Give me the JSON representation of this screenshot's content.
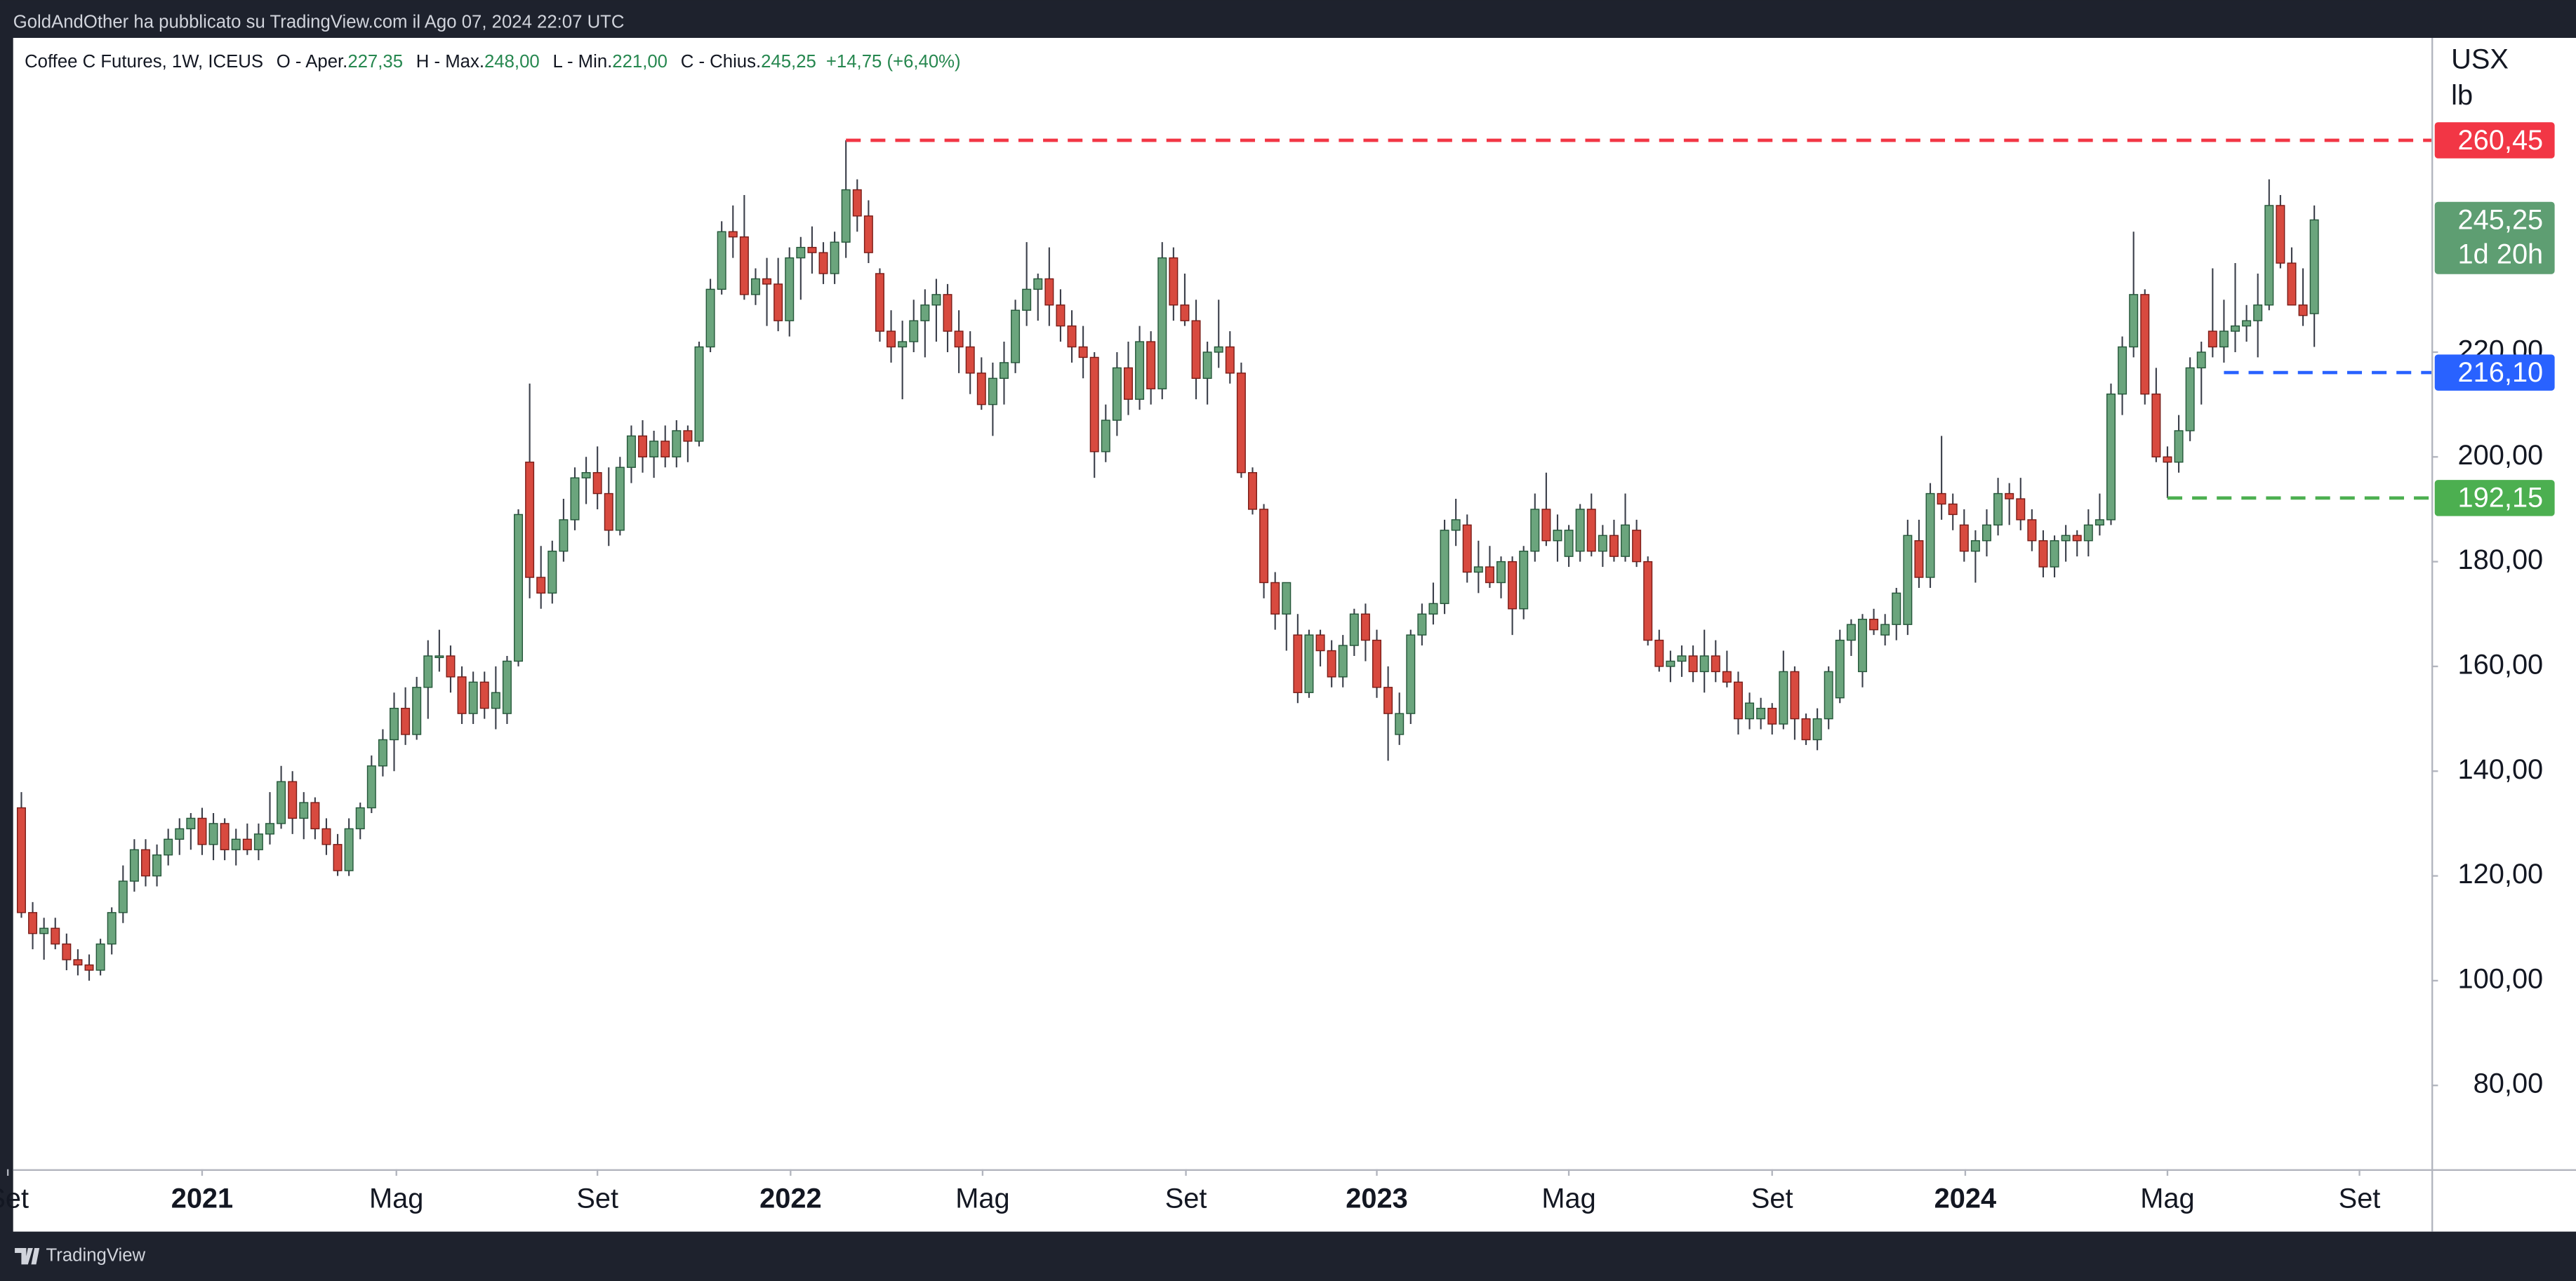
{
  "header": "GoldAndOther ha pubblicato su TradingView.com il Ago 07, 2024 22:07 UTC",
  "footer": "TradingView",
  "chart_data": {
    "type": "candlestick",
    "legend": {
      "symbol": "Coffee C Futures, 1W, ICEUS",
      "fields": [
        {
          "label": "O - Aper.",
          "value": "227,35"
        },
        {
          "label": "H - Max.",
          "value": "248,00"
        },
        {
          "label": "L - Min.",
          "value": "221,00"
        },
        {
          "label": "C - Chius.",
          "value": "245,25"
        }
      ],
      "change": "+14,75 (+6,40%)"
    },
    "units": [
      "USX",
      "lb"
    ],
    "up_color": "#6ba57d",
    "down_color": "#d84a3f",
    "ylim": [
      64,
      280
    ],
    "yticks": [
      {
        "value": 80,
        "label": "80,00"
      },
      {
        "value": 100,
        "label": "100,00"
      },
      {
        "value": 120,
        "label": "120,00"
      },
      {
        "value": 140,
        "label": "140,00"
      },
      {
        "value": 160,
        "label": "160,00"
      },
      {
        "value": 180,
        "label": "180,00"
      },
      {
        "value": 200,
        "label": "200,00"
      },
      {
        "value": 220,
        "label": "220,00"
      }
    ],
    "xlim": [
      -0.73,
      213.37
    ],
    "xticks": [
      {
        "value": -1.2,
        "label": "Set"
      },
      {
        "value": 16,
        "label": "2021"
      },
      {
        "value": 33.2,
        "label": "Mag"
      },
      {
        "value": 51,
        "label": "Set"
      },
      {
        "value": 68.1,
        "label": "2022"
      },
      {
        "value": 85.1,
        "label": "Mag"
      },
      {
        "value": 103.1,
        "label": "Set"
      },
      {
        "value": 120,
        "label": "2023"
      },
      {
        "value": 137,
        "label": "Mag"
      },
      {
        "value": 155,
        "label": "Set"
      },
      {
        "value": 172.1,
        "label": "2024"
      },
      {
        "value": 190,
        "label": "Mag"
      },
      {
        "value": 207,
        "label": "Set"
      }
    ],
    "grid": false,
    "levels": [
      {
        "value": 260.45,
        "label": "260,45",
        "color": "#f23645",
        "from": 73
      },
      {
        "value": 216.1,
        "label": "216,10",
        "color": "#2962ff",
        "from": 195
      },
      {
        "value": 192.15,
        "label": "192,15",
        "color": "#4caf50",
        "from": 190
      }
    ],
    "last_price": {
      "value": 245.25,
      "label": "245,25",
      "countdown": "1d 20h",
      "color": "#5e9e72"
    },
    "ohlc": [
      [
        133,
        136,
        112,
        113
      ],
      [
        113,
        115,
        106,
        109
      ],
      [
        109,
        112,
        104,
        110
      ],
      [
        110,
        112,
        106,
        107
      ],
      [
        107,
        109,
        102,
        104
      ],
      [
        104,
        106,
        101,
        103
      ],
      [
        103,
        105,
        100,
        102
      ],
      [
        102,
        108,
        101,
        107
      ],
      [
        107,
        114,
        105,
        113
      ],
      [
        113,
        122,
        111,
        119
      ],
      [
        119,
        127,
        117,
        125
      ],
      [
        125,
        127,
        118,
        120
      ],
      [
        120,
        126,
        118,
        124
      ],
      [
        124,
        129,
        122,
        127
      ],
      [
        127,
        131,
        124,
        129
      ],
      [
        129,
        132,
        125,
        131
      ],
      [
        131,
        133,
        124,
        126
      ],
      [
        126,
        132,
        123,
        130
      ],
      [
        130,
        131,
        123,
        125
      ],
      [
        125,
        129,
        122,
        127
      ],
      [
        127,
        130,
        124,
        125
      ],
      [
        125,
        130,
        123,
        128
      ],
      [
        128,
        136,
        126,
        130
      ],
      [
        130,
        141,
        129,
        138
      ],
      [
        138,
        140,
        128,
        131
      ],
      [
        131,
        136,
        127,
        134
      ],
      [
        134,
        135,
        127,
        129
      ],
      [
        129,
        131,
        124,
        126
      ],
      [
        126,
        128,
        120,
        121
      ],
      [
        121,
        131,
        120,
        129
      ],
      [
        129,
        134,
        127,
        133
      ],
      [
        133,
        143,
        132,
        141
      ],
      [
        141,
        148,
        139,
        146
      ],
      [
        146,
        155,
        140,
        152
      ],
      [
        152,
        156,
        145,
        147
      ],
      [
        147,
        158,
        146,
        156
      ],
      [
        156,
        165,
        150,
        162
      ],
      [
        162,
        167,
        159,
        162
      ],
      [
        162,
        164,
        155,
        158
      ],
      [
        158,
        160,
        149,
        151
      ],
      [
        151,
        159,
        149,
        157
      ],
      [
        157,
        159,
        150,
        152
      ],
      [
        152,
        160,
        148,
        155
      ],
      [
        151,
        162,
        149,
        161
      ],
      [
        161,
        190,
        160,
        189
      ],
      [
        199,
        214,
        173,
        177
      ],
      [
        177,
        183,
        171,
        174
      ],
      [
        174,
        184,
        172,
        182
      ],
      [
        182,
        192,
        180,
        188
      ],
      [
        188,
        198,
        186,
        196
      ],
      [
        196,
        200,
        191,
        197
      ],
      [
        197,
        202,
        190,
        193
      ],
      [
        193,
        198,
        183,
        186
      ],
      [
        186,
        200,
        185,
        198
      ],
      [
        198,
        206,
        195,
        204
      ],
      [
        204,
        207,
        197,
        200
      ],
      [
        200,
        205,
        196,
        203
      ],
      [
        203,
        206,
        198,
        200
      ],
      [
        200,
        207,
        198,
        205
      ],
      [
        205,
        206,
        199,
        203
      ],
      [
        203,
        222,
        202,
        221
      ],
      [
        221,
        234,
        220,
        232
      ],
      [
        232,
        245,
        231,
        243
      ],
      [
        243,
        248,
        238,
        242
      ],
      [
        242,
        250,
        230,
        231
      ],
      [
        231,
        236,
        229,
        234
      ],
      [
        234,
        238,
        225,
        233
      ],
      [
        233,
        238,
        224,
        226
      ],
      [
        226,
        240,
        223,
        238
      ],
      [
        238,
        242,
        230,
        240
      ],
      [
        240,
        244,
        235,
        239
      ],
      [
        239,
        241,
        233,
        235
      ],
      [
        235,
        243,
        233,
        241
      ],
      [
        241,
        260.45,
        238,
        251
      ],
      [
        251,
        253,
        243,
        246
      ],
      [
        246,
        249,
        237,
        239
      ],
      [
        235,
        236,
        222,
        224
      ],
      [
        224,
        228,
        218,
        221
      ],
      [
        221,
        226,
        211,
        222
      ],
      [
        222,
        230,
        220,
        226
      ],
      [
        226,
        232,
        219,
        229
      ],
      [
        229,
        234,
        222,
        231
      ],
      [
        231,
        233,
        220,
        224
      ],
      [
        224,
        228,
        216,
        221
      ],
      [
        221,
        224,
        212,
        216
      ],
      [
        216,
        219,
        209,
        210
      ],
      [
        210,
        218,
        204,
        215
      ],
      [
        215,
        222,
        210,
        218
      ],
      [
        218,
        230,
        216,
        228
      ],
      [
        228,
        241,
        225,
        232
      ],
      [
        232,
        235,
        226,
        234
      ],
      [
        234,
        240,
        225,
        229
      ],
      [
        229,
        232,
        222,
        225
      ],
      [
        225,
        228,
        218,
        221
      ],
      [
        221,
        225,
        215,
        219
      ],
      [
        219,
        220,
        196,
        201
      ],
      [
        201,
        210,
        199,
        207
      ],
      [
        207,
        220,
        204,
        217
      ],
      [
        217,
        222,
        208,
        211
      ],
      [
        211,
        225,
        209,
        222
      ],
      [
        222,
        224,
        210,
        213
      ],
      [
        213,
        241,
        211,
        238
      ],
      [
        238,
        240,
        226,
        229
      ],
      [
        229,
        235,
        225,
        226
      ],
      [
        226,
        230,
        211,
        215
      ],
      [
        215,
        222,
        210,
        220
      ],
      [
        220,
        230,
        217,
        221
      ],
      [
        221,
        224,
        214,
        216
      ],
      [
        216,
        218,
        196,
        197
      ],
      [
        197,
        198,
        189,
        190
      ],
      [
        190,
        191,
        173,
        176
      ],
      [
        176,
        178,
        167,
        170
      ],
      [
        170,
        176,
        163,
        176
      ],
      [
        166,
        170,
        153,
        155
      ],
      [
        155,
        167,
        154,
        166
      ],
      [
        166,
        167,
        160,
        163
      ],
      [
        163,
        165,
        156,
        158
      ],
      [
        158,
        166,
        156,
        164
      ],
      [
        164,
        171,
        162,
        170
      ],
      [
        170,
        172,
        161,
        165
      ],
      [
        165,
        167,
        154,
        156
      ],
      [
        156,
        160,
        142,
        151
      ],
      [
        147,
        155,
        145,
        151
      ],
      [
        151,
        167,
        149,
        166
      ],
      [
        166,
        172,
        164,
        170
      ],
      [
        170,
        176,
        168,
        172
      ],
      [
        172,
        188,
        170,
        186
      ],
      [
        186,
        192,
        183,
        188
      ],
      [
        187,
        189,
        176,
        178
      ],
      [
        178,
        184,
        174,
        179
      ],
      [
        179,
        183,
        175,
        176
      ],
      [
        176,
        181,
        173,
        180
      ],
      [
        180,
        181,
        166,
        171
      ],
      [
        171,
        183,
        169,
        182
      ],
      [
        182,
        193,
        180,
        190
      ],
      [
        190,
        197,
        183,
        184
      ],
      [
        184,
        189,
        180,
        186
      ],
      [
        181,
        187,
        179,
        186
      ],
      [
        182,
        191,
        180,
        190
      ],
      [
        190,
        193,
        181,
        182
      ],
      [
        182,
        187,
        179,
        185
      ],
      [
        185,
        188,
        180,
        181
      ],
      [
        181,
        193,
        180,
        187
      ],
      [
        186,
        188,
        179,
        180
      ],
      [
        180,
        181,
        164,
        165
      ],
      [
        165,
        167,
        159,
        160
      ],
      [
        160,
        163,
        157,
        161
      ],
      [
        161,
        164,
        158,
        162
      ],
      [
        162,
        164,
        157,
        159
      ],
      [
        159,
        167,
        155,
        162
      ],
      [
        162,
        165,
        157,
        159
      ],
      [
        159,
        163,
        156,
        157
      ],
      [
        157,
        159,
        147,
        150
      ],
      [
        150,
        155,
        148,
        153
      ],
      [
        150,
        154,
        148,
        152
      ],
      [
        152,
        153,
        147,
        149
      ],
      [
        149,
        163,
        148,
        159
      ],
      [
        159,
        160,
        146,
        150
      ],
      [
        150,
        151,
        145,
        146
      ],
      [
        146,
        152,
        144,
        150
      ],
      [
        150,
        160,
        148,
        159
      ],
      [
        154,
        167,
        153,
        165
      ],
      [
        165,
        169,
        162,
        168
      ],
      [
        159,
        170,
        156,
        169
      ],
      [
        169,
        171,
        166,
        167
      ],
      [
        166,
        170,
        164,
        168
      ],
      [
        168,
        175,
        165,
        174
      ],
      [
        168,
        188,
        166,
        185
      ],
      [
        184,
        188,
        175,
        177
      ],
      [
        177,
        195,
        175,
        193
      ],
      [
        193,
        204,
        188,
        191
      ],
      [
        191,
        193,
        186,
        189
      ],
      [
        187,
        190,
        180,
        182
      ],
      [
        182,
        186,
        176,
        184
      ],
      [
        184,
        190,
        181,
        187
      ],
      [
        187,
        196,
        185,
        193
      ],
      [
        193,
        195,
        187,
        192
      ],
      [
        192,
        196,
        186,
        188
      ],
      [
        188,
        190,
        182,
        184
      ],
      [
        184,
        186,
        177,
        179
      ],
      [
        179,
        185,
        177,
        184
      ],
      [
        184,
        187,
        180,
        185
      ],
      [
        185,
        186,
        181,
        184
      ],
      [
        184,
        190,
        181,
        187
      ],
      [
        187,
        193,
        185,
        188
      ],
      [
        188,
        214,
        187,
        212
      ],
      [
        212,
        223,
        208,
        221
      ],
      [
        221,
        243,
        219,
        231
      ],
      [
        231,
        232,
        210,
        212
      ],
      [
        212,
        217,
        199,
        200
      ],
      [
        200,
        202,
        192.15,
        199
      ],
      [
        199,
        208,
        197,
        205
      ],
      [
        205,
        219,
        203,
        217
      ],
      [
        217,
        222,
        210,
        220
      ],
      [
        224,
        236,
        219,
        221
      ],
      [
        221,
        230,
        218,
        224
      ],
      [
        224,
        237,
        220,
        225
      ],
      [
        225,
        229,
        222,
        226
      ],
      [
        226,
        235,
        219,
        229
      ],
      [
        229,
        253,
        228,
        248
      ],
      [
        248,
        250,
        236,
        237
      ],
      [
        237,
        240,
        229,
        229
      ],
      [
        229,
        236,
        225,
        227
      ],
      [
        227.35,
        248,
        221,
        245.25
      ]
    ]
  }
}
